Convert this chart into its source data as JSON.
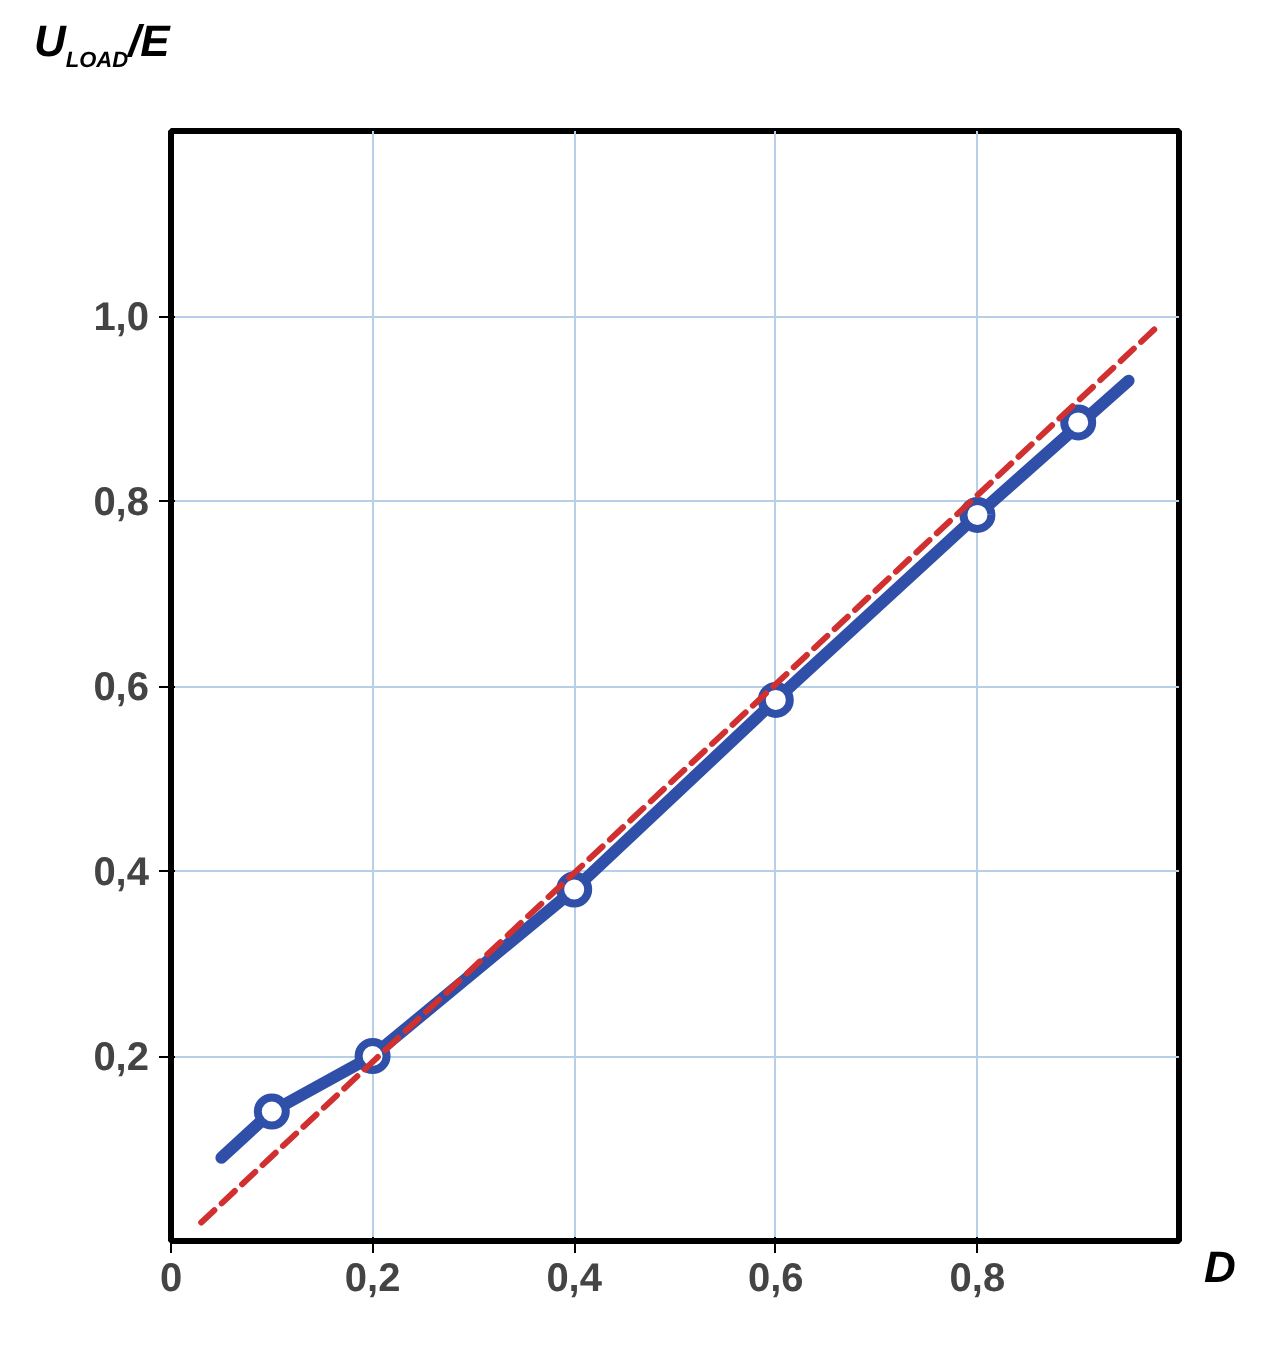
{
  "chart_data": {
    "type": "line",
    "xlabel": "D",
    "ylabel": "U$_{LOAD}$/E",
    "xlim": [
      0,
      1.0
    ],
    "ylim": [
      0,
      1.2
    ],
    "xticks": [
      {
        "value": 0,
        "label": "0"
      },
      {
        "value": 0.2,
        "label": "0,2"
      },
      {
        "value": 0.4,
        "label": "0,4"
      },
      {
        "value": 0.6,
        "label": "0,6"
      },
      {
        "value": 0.8,
        "label": "0,8"
      }
    ],
    "yticks": [
      {
        "value": 0.2,
        "label": "0,2"
      },
      {
        "value": 0.4,
        "label": "0,4"
      },
      {
        "value": 0.6,
        "label": "0,6"
      },
      {
        "value": 0.8,
        "label": "0,8"
      },
      {
        "value": 1.0,
        "label": "1,0"
      }
    ],
    "grid": true,
    "series": [
      {
        "color": "#2f4fa8",
        "marker": "none",
        "line_style": "solid",
        "x": [
          0.05,
          0.1,
          0.2,
          0.4,
          0.6,
          0.8,
          0.95
        ],
        "values": [
          0.09,
          0.14,
          0.2,
          0.38,
          0.585,
          0.785,
          0.93
        ]
      },
      {
        "type": "scatter",
        "color": "#2f4fa8",
        "marker": "circle",
        "x": [
          0.1,
          0.2,
          0.4,
          0.6,
          0.8,
          0.9
        ],
        "values": [
          0.14,
          0.2,
          0.38,
          0.585,
          0.785,
          0.885
        ]
      },
      {
        "color": "#d03030",
        "marker": "none",
        "line_style": "dashed",
        "x": [
          0.03,
          0.98
        ],
        "values": [
          0.02,
          0.99
        ]
      }
    ]
  }
}
